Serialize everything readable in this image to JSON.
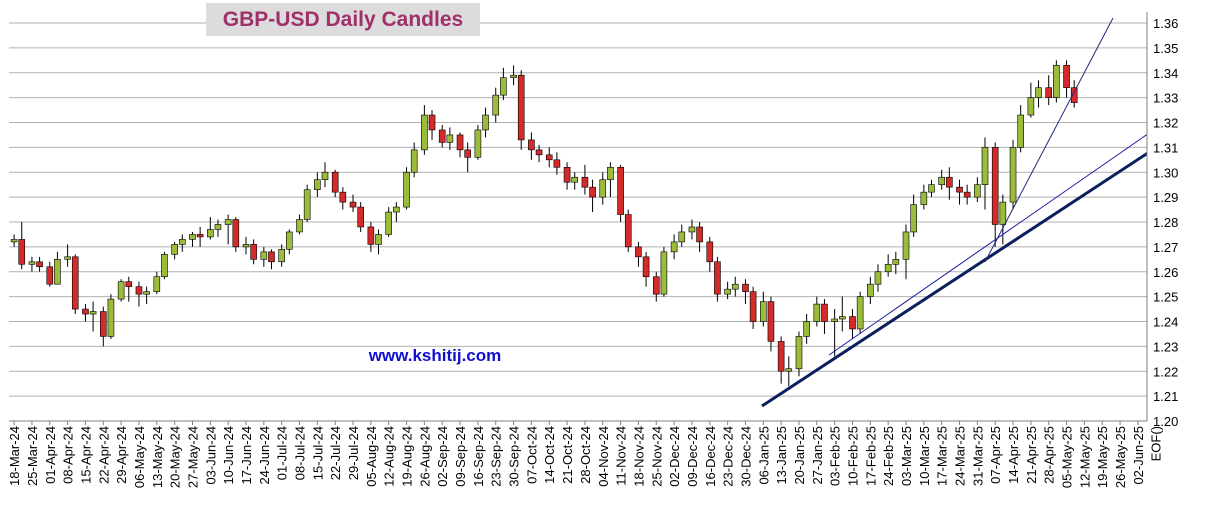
{
  "chart_data": {
    "type": "candlestick",
    "title": "GBP-USD Daily Candles",
    "annotation": "www.kshitij.com",
    "up_color": "#9bbb3b",
    "down_color": "#d42a2a",
    "wick_color": "#000000",
    "grid": true,
    "ylim": [
      1.2,
      1.36
    ],
    "yticks": [
      {
        "value": 1.2,
        "label": "1.20"
      },
      1.21,
      1.22,
      1.23,
      1.24,
      1.25,
      1.26,
      1.27,
      1.28,
      1.29,
      {
        "value": 1.3,
        "label": "1.30"
      },
      1.31,
      1.32,
      1.33,
      1.34,
      1.35,
      1.36
    ],
    "xlim": [
      "2024-03-16",
      "2025-06-04"
    ],
    "xticks": [
      {
        "value": "2024-03-18",
        "label": "18-Mar-24"
      },
      {
        "value": "2024-03-25",
        "label": "25-Mar-24"
      },
      {
        "value": "2024-04-01",
        "label": "01-Apr-24"
      },
      {
        "value": "2024-04-08",
        "label": "08-Apr-24"
      },
      {
        "value": "2024-04-15",
        "label": "15-Apr-24"
      },
      {
        "value": "2024-04-22",
        "label": "22-Apr-24"
      },
      {
        "value": "2024-04-29",
        "label": "29-Apr-24"
      },
      {
        "value": "2024-05-06",
        "label": "06-May-24"
      },
      {
        "value": "2024-05-13",
        "label": "13-May-24"
      },
      {
        "value": "2024-05-20",
        "label": "20-May-24"
      },
      {
        "value": "2024-05-27",
        "label": "27-May-24"
      },
      {
        "value": "2024-06-03",
        "label": "03-Jun-24"
      },
      {
        "value": "2024-06-10",
        "label": "10-Jun-24"
      },
      {
        "value": "2024-06-17",
        "label": "17-Jun-24"
      },
      {
        "value": "2024-06-24",
        "label": "24-Jun-24"
      },
      {
        "value": "2024-07-01",
        "label": "01-Jul-24"
      },
      {
        "value": "2024-07-08",
        "label": "08-Jul-24"
      },
      {
        "value": "2024-07-15",
        "label": "15-Jul-24"
      },
      {
        "value": "2024-07-22",
        "label": "22-Jul-24"
      },
      {
        "value": "2024-07-29",
        "label": "29-Jul-24"
      },
      {
        "value": "2024-08-05",
        "label": "05-Aug-24"
      },
      {
        "value": "2024-08-12",
        "label": "12-Aug-24"
      },
      {
        "value": "2024-08-19",
        "label": "19-Aug-24"
      },
      {
        "value": "2024-08-26",
        "label": "26-Aug-24"
      },
      {
        "value": "2024-09-02",
        "label": "02-Sep-24"
      },
      {
        "value": "2024-09-09",
        "label": "09-Sep-24"
      },
      {
        "value": "2024-09-16",
        "label": "16-Sep-24"
      },
      {
        "value": "2024-09-23",
        "label": "23-Sep-24"
      },
      {
        "value": "2024-09-30",
        "label": "30-Sep-24"
      },
      {
        "value": "2024-10-07",
        "label": "07-Oct-24"
      },
      {
        "value": "2024-10-14",
        "label": "14-Oct-24"
      },
      {
        "value": "2024-10-21",
        "label": "21-Oct-24"
      },
      {
        "value": "2024-10-28",
        "label": "28-Oct-24"
      },
      {
        "value": "2024-11-04",
        "label": "04-Nov-24"
      },
      {
        "value": "2024-11-11",
        "label": "11-Nov-24"
      },
      {
        "value": "2024-11-18",
        "label": "18-Nov-24"
      },
      {
        "value": "2024-11-25",
        "label": "25-Nov-24"
      },
      {
        "value": "2024-12-02",
        "label": "02-Dec-24"
      },
      {
        "value": "2024-12-09",
        "label": "09-Dec-24"
      },
      {
        "value": "2024-12-16",
        "label": "16-Dec-24"
      },
      {
        "value": "2024-12-23",
        "label": "23-Dec-24"
      },
      {
        "value": "2024-12-30",
        "label": "30-Dec-24"
      },
      {
        "value": "2025-01-06",
        "label": "06-Jan-25"
      },
      {
        "value": "2025-01-13",
        "label": "13-Jan-25"
      },
      {
        "value": "2025-01-20",
        "label": "20-Jan-25"
      },
      {
        "value": "2025-01-27",
        "label": "27-Jan-25"
      },
      {
        "value": "2025-02-03",
        "label": "03-Feb-25"
      },
      {
        "value": "2025-02-10",
        "label": "10-Feb-25"
      },
      {
        "value": "2025-02-17",
        "label": "17-Feb-25"
      },
      {
        "value": "2025-02-24",
        "label": "24-Feb-25"
      },
      {
        "value": "2025-03-03",
        "label": "03-Mar-25"
      },
      {
        "value": "2025-03-10",
        "label": "10-Mar-25"
      },
      {
        "value": "2025-03-17",
        "label": "17-Mar-25"
      },
      {
        "value": "2025-03-24",
        "label": "24-Mar-25"
      },
      {
        "value": "2025-03-31",
        "label": "31-Mar-25"
      },
      {
        "value": "2025-04-07",
        "label": "07-Apr-25"
      },
      {
        "value": "2025-04-14",
        "label": "14-Apr-25"
      },
      {
        "value": "2025-04-21",
        "label": "21-Apr-25"
      },
      {
        "value": "2025-04-28",
        "label": "28-Apr-25"
      },
      {
        "value": "2025-05-05",
        "label": "05-May-25"
      },
      {
        "value": "2025-05-12",
        "label": "12-May-25"
      },
      {
        "value": "2025-05-19",
        "label": "19-May-25"
      },
      {
        "value": "2025-05-26",
        "label": "26-May-25"
      },
      {
        "value": "2025-06-02",
        "label": "02-Jun-25"
      },
      {
        "value": "2025-06-09",
        "label": "EOF()"
      }
    ],
    "x": [
      "2024-03-18",
      "2024-03-21",
      "2024-03-25",
      "2024-03-28",
      "2024-04-01",
      "2024-04-04",
      "2024-04-08",
      "2024-04-11",
      "2024-04-15",
      "2024-04-18",
      "2024-04-22",
      "2024-04-25",
      "2024-04-29",
      "2024-05-02",
      "2024-05-06",
      "2024-05-09",
      "2024-05-13",
      "2024-05-16",
      "2024-05-20",
      "2024-05-23",
      "2024-05-27",
      "2024-05-30",
      "2024-06-03",
      "2024-06-06",
      "2024-06-10",
      "2024-06-13",
      "2024-06-17",
      "2024-06-20",
      "2024-06-24",
      "2024-06-27",
      "2024-07-01",
      "2024-07-04",
      "2024-07-08",
      "2024-07-11",
      "2024-07-15",
      "2024-07-18",
      "2024-07-22",
      "2024-07-25",
      "2024-07-29",
      "2024-08-01",
      "2024-08-05",
      "2024-08-08",
      "2024-08-12",
      "2024-08-15",
      "2024-08-19",
      "2024-08-22",
      "2024-08-26",
      "2024-08-29",
      "2024-09-02",
      "2024-09-05",
      "2024-09-09",
      "2024-09-12",
      "2024-09-16",
      "2024-09-19",
      "2024-09-23",
      "2024-09-26",
      "2024-09-30",
      "2024-10-03",
      "2024-10-07",
      "2024-10-10",
      "2024-10-14",
      "2024-10-17",
      "2024-10-21",
      "2024-10-24",
      "2024-10-28",
      "2024-10-31",
      "2024-11-04",
      "2024-11-07",
      "2024-11-11",
      "2024-11-14",
      "2024-11-18",
      "2024-11-21",
      "2024-11-25",
      "2024-11-28",
      "2024-12-02",
      "2024-12-05",
      "2024-12-09",
      "2024-12-12",
      "2024-12-16",
      "2024-12-19",
      "2024-12-23",
      "2024-12-26",
      "2024-12-30",
      "2025-01-02",
      "2025-01-06",
      "2025-01-09",
      "2025-01-13",
      "2025-01-16",
      "2025-01-20",
      "2025-01-23",
      "2025-01-27",
      "2025-01-30",
      "2025-02-03",
      "2025-02-06",
      "2025-02-10",
      "2025-02-13",
      "2025-02-17",
      "2025-02-20",
      "2025-02-24",
      "2025-02-27",
      "2025-03-03",
      "2025-03-06",
      "2025-03-10",
      "2025-03-13",
      "2025-03-17",
      "2025-03-20",
      "2025-03-24",
      "2025-03-27",
      "2025-03-31",
      "2025-04-03",
      "2025-04-07",
      "2025-04-10",
      "2025-04-14",
      "2025-04-17",
      "2025-04-21",
      "2025-04-24",
      "2025-04-28",
      "2025-05-01",
      "2025-05-05",
      "2025-05-08"
    ],
    "open": [
      1.272,
      1.273,
      1.263,
      1.264,
      1.262,
      1.255,
      1.265,
      1.266,
      1.245,
      1.243,
      1.244,
      1.234,
      1.249,
      1.256,
      1.254,
      1.251,
      1.252,
      1.258,
      1.267,
      1.271,
      1.273,
      1.275,
      1.274,
      1.277,
      1.279,
      1.281,
      1.27,
      1.271,
      1.265,
      1.268,
      1.264,
      1.269,
      1.276,
      1.281,
      1.293,
      1.297,
      1.3,
      1.292,
      1.288,
      1.286,
      1.278,
      1.271,
      1.275,
      1.284,
      1.286,
      1.3,
      1.309,
      1.323,
      1.317,
      1.312,
      1.315,
      1.309,
      1.306,
      1.317,
      1.323,
      1.331,
      1.338,
      1.339,
      1.313,
      1.309,
      1.307,
      1.305,
      1.302,
      1.296,
      1.298,
      1.294,
      1.29,
      1.297,
      1.302,
      1.283,
      1.27,
      1.266,
      1.258,
      1.251,
      1.268,
      1.272,
      1.276,
      1.278,
      1.272,
      1.264,
      1.251,
      1.253,
      1.255,
      1.252,
      1.24,
      1.248,
      1.232,
      1.22,
      1.221,
      1.234,
      1.24,
      1.247,
      1.24,
      1.241,
      1.242,
      1.237,
      1.25,
      1.255,
      1.26,
      1.263,
      1.265,
      1.276,
      1.287,
      1.292,
      1.295,
      1.298,
      1.294,
      1.292,
      1.29,
      1.295,
      1.31,
      1.279,
      1.288,
      1.31,
      1.323,
      1.33,
      1.334,
      1.33,
      1.343,
      1.334
    ],
    "high": [
      1.275,
      1.28,
      1.266,
      1.266,
      1.264,
      1.268,
      1.271,
      1.267,
      1.247,
      1.248,
      1.246,
      1.251,
      1.257,
      1.258,
      1.256,
      1.254,
      1.26,
      1.268,
      1.272,
      1.275,
      1.276,
      1.278,
      1.282,
      1.281,
      1.283,
      1.282,
      1.274,
      1.273,
      1.27,
      1.269,
      1.271,
      1.277,
      1.283,
      1.295,
      1.3,
      1.304,
      1.301,
      1.294,
      1.291,
      1.288,
      1.28,
      1.277,
      1.286,
      1.288,
      1.302,
      1.312,
      1.327,
      1.325,
      1.319,
      1.318,
      1.316,
      1.312,
      1.319,
      1.326,
      1.334,
      1.342,
      1.343,
      1.341,
      1.316,
      1.311,
      1.31,
      1.308,
      1.304,
      1.3,
      1.303,
      1.297,
      1.3,
      1.304,
      1.303,
      1.285,
      1.272,
      1.268,
      1.26,
      1.27,
      1.275,
      1.279,
      1.281,
      1.28,
      1.274,
      1.266,
      1.256,
      1.258,
      1.257,
      1.254,
      1.252,
      1.25,
      1.234,
      1.226,
      1.236,
      1.243,
      1.25,
      1.249,
      1.245,
      1.25,
      1.245,
      1.252,
      1.258,
      1.263,
      1.267,
      1.268,
      1.279,
      1.291,
      1.295,
      1.297,
      1.301,
      1.302,
      1.297,
      1.295,
      1.298,
      1.314,
      1.312,
      1.291,
      1.313,
      1.327,
      1.336,
      1.337,
      1.339,
      1.345,
      1.345,
      1.337
    ],
    "low": [
      1.27,
      1.261,
      1.26,
      1.26,
      1.254,
      1.255,
      1.262,
      1.243,
      1.24,
      1.236,
      1.23,
      1.233,
      1.248,
      1.248,
      1.246,
      1.247,
      1.251,
      1.257,
      1.265,
      1.268,
      1.27,
      1.27,
      1.273,
      1.274,
      1.271,
      1.268,
      1.267,
      1.263,
      1.262,
      1.261,
      1.262,
      1.267,
      1.275,
      1.28,
      1.29,
      1.294,
      1.29,
      1.285,
      1.284,
      1.276,
      1.268,
      1.267,
      1.274,
      1.28,
      1.285,
      1.298,
      1.307,
      1.313,
      1.31,
      1.309,
      1.306,
      1.3,
      1.305,
      1.314,
      1.32,
      1.329,
      1.335,
      1.309,
      1.305,
      1.304,
      1.302,
      1.299,
      1.293,
      1.293,
      1.291,
      1.284,
      1.287,
      1.29,
      1.28,
      1.268,
      1.262,
      1.254,
      1.248,
      1.25,
      1.265,
      1.27,
      1.273,
      1.268,
      1.26,
      1.248,
      1.249,
      1.25,
      1.247,
      1.237,
      1.238,
      1.228,
      1.215,
      1.214,
      1.218,
      1.231,
      1.238,
      1.235,
      1.226,
      1.236,
      1.233,
      1.235,
      1.247,
      1.252,
      1.258,
      1.259,
      1.257,
      1.274,
      1.285,
      1.29,
      1.293,
      1.289,
      1.287,
      1.287,
      1.288,
      1.285,
      1.27,
      1.271,
      1.285,
      1.308,
      1.322,
      1.326,
      1.327,
      1.328,
      1.33,
      1.326
    ],
    "close": [
      1.273,
      1.263,
      1.264,
      1.262,
      1.255,
      1.265,
      1.266,
      1.245,
      1.243,
      1.244,
      1.234,
      1.249,
      1.256,
      1.254,
      1.251,
      1.252,
      1.258,
      1.267,
      1.271,
      1.273,
      1.275,
      1.274,
      1.277,
      1.279,
      1.281,
      1.27,
      1.271,
      1.265,
      1.268,
      1.264,
      1.269,
      1.276,
      1.281,
      1.293,
      1.297,
      1.3,
      1.292,
      1.288,
      1.286,
      1.278,
      1.271,
      1.275,
      1.284,
      1.286,
      1.3,
      1.309,
      1.323,
      1.317,
      1.312,
      1.315,
      1.309,
      1.306,
      1.317,
      1.323,
      1.331,
      1.338,
      1.339,
      1.313,
      1.309,
      1.307,
      1.305,
      1.302,
      1.296,
      1.298,
      1.294,
      1.29,
      1.297,
      1.302,
      1.283,
      1.27,
      1.266,
      1.258,
      1.251,
      1.268,
      1.272,
      1.276,
      1.278,
      1.272,
      1.264,
      1.251,
      1.253,
      1.255,
      1.252,
      1.24,
      1.248,
      1.232,
      1.22,
      1.221,
      1.234,
      1.24,
      1.247,
      1.24,
      1.241,
      1.242,
      1.237,
      1.25,
      1.255,
      1.26,
      1.263,
      1.265,
      1.276,
      1.287,
      1.292,
      1.295,
      1.298,
      1.294,
      1.292,
      1.29,
      1.295,
      1.31,
      1.279,
      1.288,
      1.31,
      1.323,
      1.33,
      1.334,
      1.33,
      1.343,
      1.334,
      1.328
    ]
  }
}
